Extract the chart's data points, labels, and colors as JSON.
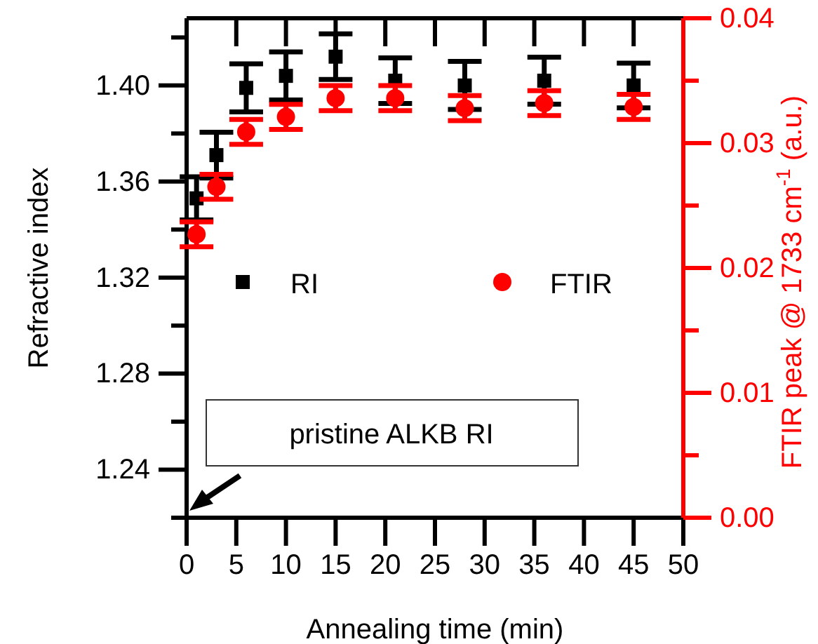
{
  "chart_data": {
    "type": "scatter",
    "xlabel": "Annealing time (min)",
    "ylabel": "Refractive index",
    "y2label": "FTIR peak @ 1733 cm$^{-1}$ (a.u.)",
    "x": [
      1,
      3,
      6,
      10,
      15,
      21,
      28,
      36,
      45
    ],
    "xlim": [
      0,
      50
    ],
    "xticks": [
      0,
      5,
      10,
      15,
      20,
      25,
      30,
      35,
      40,
      45,
      50
    ],
    "ylim": [
      1.22,
      1.428
    ],
    "yticks": [
      {
        "value": 1.22,
        "label": null
      },
      1.24,
      {
        "value": 1.26,
        "label": null
      },
      1.28,
      {
        "value": 1.3,
        "label": null
      },
      1.32,
      {
        "value": 1.34,
        "label": null
      },
      1.36,
      {
        "value": 1.38,
        "label": null
      },
      {
        "value": 1.4,
        "label": "1.40"
      },
      {
        "value": 1.42,
        "label": null
      }
    ],
    "y2lim": [
      0,
      0.04
    ],
    "y2ticks": [
      {
        "value": 0,
        "label": "0.00"
      },
      {
        "value": 0.005,
        "label": null
      },
      {
        "value": 0.01,
        "label": "0.01"
      },
      {
        "value": 0.015,
        "label": null
      },
      {
        "value": 0.02,
        "label": "0.02"
      },
      {
        "value": 0.025,
        "label": null
      },
      {
        "value": 0.03,
        "label": "0.03"
      },
      {
        "value": 0.035,
        "label": null
      },
      {
        "value": 0.04,
        "label": "0.04"
      }
    ],
    "series": [
      {
        "name": "RI",
        "color": "#000000",
        "marker": "square",
        "values": [
          1.353,
          1.371,
          1.399,
          1.404,
          1.412,
          1.402,
          1.4,
          1.402,
          1.4
        ],
        "errors": [
          0.009,
          0.0095,
          0.01,
          0.01,
          0.0095,
          0.0095,
          0.01,
          0.0098,
          0.0093
        ]
      },
      {
        "name": "FTIR",
        "color": "#ff0000",
        "marker": "circle",
        "axis": "y2",
        "values": [
          0.0227,
          0.0265,
          0.0309,
          0.0321,
          0.0336,
          0.0336,
          0.0328,
          0.0332,
          0.0329
        ],
        "errors": [
          0.001,
          0.001,
          0.001,
          0.001,
          0.001,
          0.001,
          0.001,
          0.001,
          0.001
        ]
      }
    ],
    "legend": "center",
    "grid": false,
    "annotations": [
      "pristine ALKB RI"
    ]
  }
}
